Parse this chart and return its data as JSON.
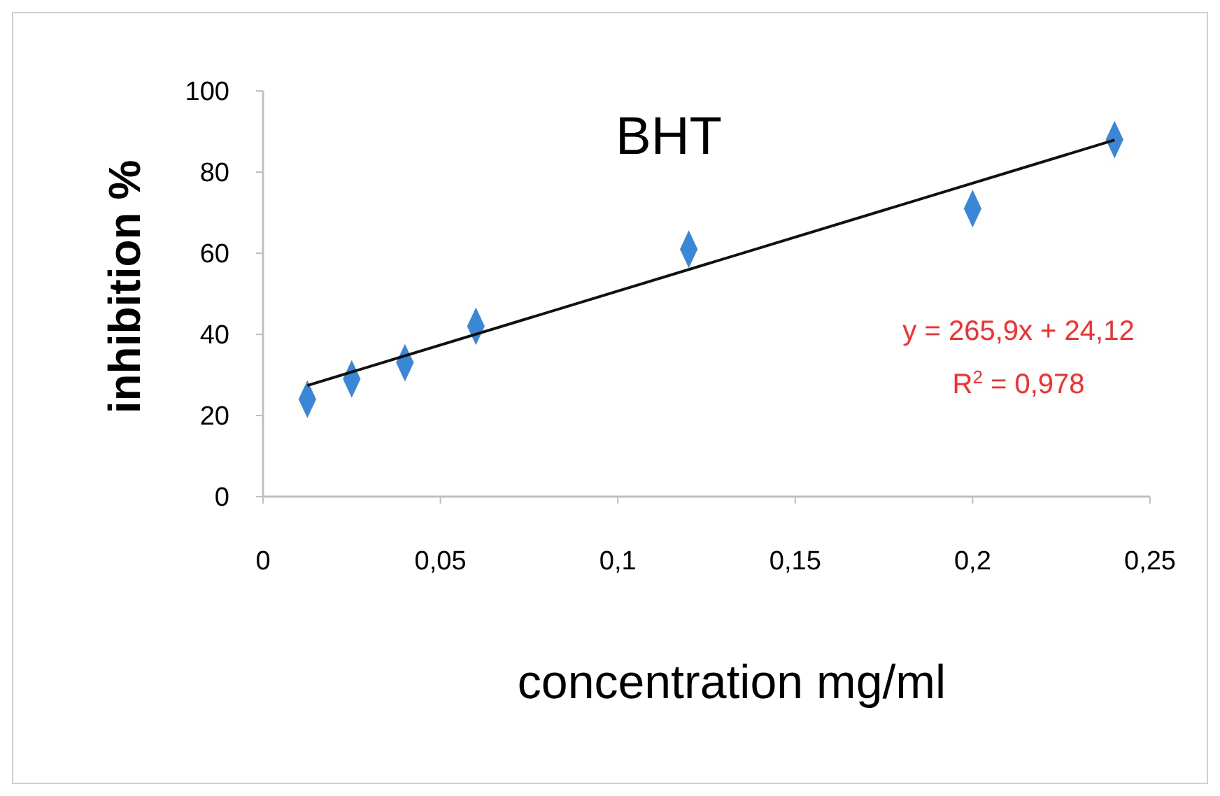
{
  "chart_data": {
    "type": "scatter",
    "title": "BHT",
    "xlabel": "concentration mg/ml",
    "ylabel": "inhibition %",
    "xlim": [
      0,
      0.25
    ],
    "xticks": [
      0,
      {
        "value": 0.05,
        "label": "0,05"
      },
      {
        "value": 0.1,
        "label": "0,1"
      },
      {
        "value": 0.15,
        "label": "0,15"
      },
      {
        "value": 0.2,
        "label": "0,2"
      },
      {
        "value": 0.25,
        "label": "0,25"
      }
    ],
    "ylim": [
      0,
      100
    ],
    "yticks": [
      0,
      20,
      40,
      60,
      80,
      100
    ],
    "grid": false,
    "series": [
      {
        "marker": "diamond",
        "color": "#3a87d8",
        "x": [
          0.0125,
          0.025,
          0.04,
          0.06,
          0.12,
          0.2,
          0.24
        ],
        "values": [
          24,
          29,
          33,
          42,
          61,
          71,
          88
        ]
      },
      {
        "type": "line",
        "color": "#111111",
        "x": [
          0.0125,
          0.24
        ],
        "values": [
          27.4,
          87.9
        ]
      }
    ],
    "annotations": [
      "y = 265,9x + 24,12",
      "R$^{2}$ = 0,978"
    ]
  }
}
